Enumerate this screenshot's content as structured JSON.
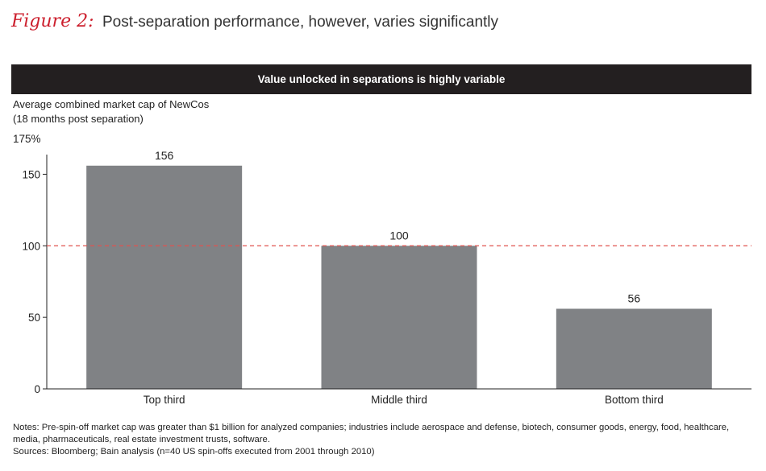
{
  "figure": {
    "label": "Figure 2:",
    "title": "Post-separation performance, however, varies significantly"
  },
  "banner": "Value unlocked in separations is highly variable",
  "chart_data": {
    "type": "bar",
    "title": "Value unlocked in separations is highly variable",
    "ylabel_lines": [
      "Average combined market cap of NewCos",
      "(18 months post separation)"
    ],
    "xlabel": "",
    "categories": [
      "Top third",
      "Middle third",
      "Bottom third"
    ],
    "values": [
      156,
      100,
      56
    ],
    "data_labels": [
      "156",
      "100",
      "56"
    ],
    "ylim": [
      0,
      175
    ],
    "yticks": [
      0,
      50,
      100,
      150,
      175
    ],
    "ytick_labels": [
      "0",
      "50",
      "100",
      "150",
      "175%"
    ],
    "reference_line": {
      "value": 100,
      "style": "dashed",
      "color": "#e0524f"
    },
    "bar_color": "#808285",
    "grid": false,
    "legend": "none"
  },
  "notes": {
    "line1": "Notes: Pre-spin-off market cap was greater than $1 billion for analyzed companies; industries include aerospace and defense, biotech, consumer goods, energy, food, healthcare, media, pharmaceuticals, real estate investment trusts, software.",
    "line2": "Sources: Bloomberg; Bain analysis (n=40 US spin-offs executed from 2001 through 2010)"
  }
}
